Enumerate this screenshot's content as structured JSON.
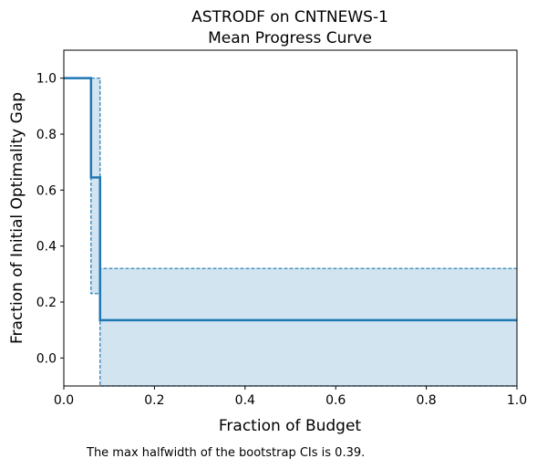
{
  "chart_data": {
    "type": "line",
    "title_line1": "ASTRODF on CNTNEWS-1",
    "title_line2": "Mean Progress Curve",
    "xlabel": "Fraction of Budget",
    "ylabel": "Fraction of Initial Optimality Gap",
    "xlim": [
      0.0,
      1.0
    ],
    "ylim": [
      -0.1,
      1.1
    ],
    "xticks": [
      0.0,
      0.2,
      0.4,
      0.6,
      0.8,
      1.0
    ],
    "xtick_labels": [
      "0.0",
      "0.2",
      "0.4",
      "0.6",
      "0.8",
      "1.0"
    ],
    "yticks": [
      0.0,
      0.2,
      0.4,
      0.6,
      0.8,
      1.0
    ],
    "ytick_labels": [
      "0.0",
      "0.2",
      "0.4",
      "0.6",
      "0.8",
      "1.0"
    ],
    "grid": false,
    "colors": {
      "line": "#1f77b4",
      "fill": "#1f77b4"
    },
    "mean_curve": {
      "x": [
        0.0,
        0.06,
        0.06,
        0.08,
        0.08,
        1.0
      ],
      "y": [
        1.0,
        1.0,
        0.645,
        0.645,
        0.135,
        0.135
      ]
    },
    "ci_upper": {
      "x": [
        0.0,
        0.08,
        0.08,
        1.0
      ],
      "y": [
        1.0,
        1.0,
        0.32,
        0.32
      ]
    },
    "ci_lower": {
      "x": [
        0.0,
        0.06,
        0.06,
        0.08,
        0.08,
        1.0
      ],
      "y": [
        1.0,
        1.0,
        0.23,
        0.23,
        -0.1,
        -0.1
      ]
    },
    "annotation": "The max halfwidth of the bootstrap CIs is 0.39."
  }
}
